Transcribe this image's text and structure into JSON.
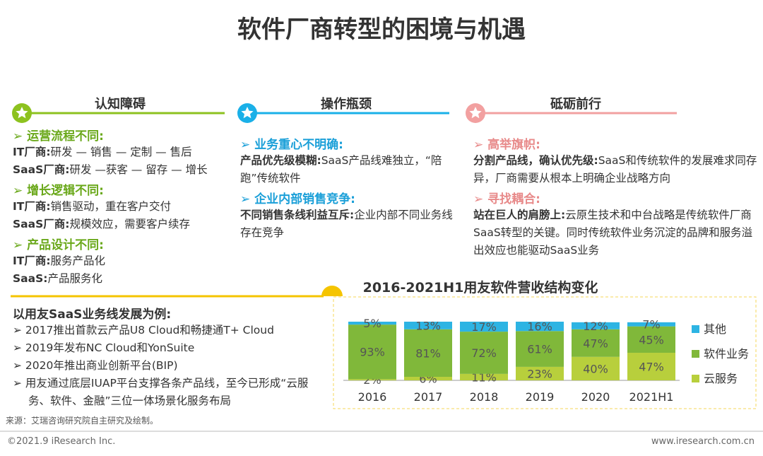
{
  "title": "软件厂商转型的困境与机遇",
  "columns": [
    {
      "heading": "认知障碍",
      "sections": [
        {
          "heading": "运营流程不同:",
          "lines": [
            {
              "label": "IT厂商:",
              "text": "研发 — 销售 — 定制 — 售后"
            },
            {
              "label": "SaaS厂商:",
              "text": "研发 —获客 — 留存 — 增长"
            }
          ]
        },
        {
          "heading": "增长逻辑不同:",
          "lines": [
            {
              "label": "IT厂商:",
              "text": "销售驱动，重在客户交付"
            },
            {
              "label": "SaaS厂商:",
              "text": "规模效应，需要客户续存"
            }
          ]
        },
        {
          "heading": "产品设计不同:",
          "lines": [
            {
              "label": "IT厂商:",
              "text": "服务产品化"
            },
            {
              "label": "SaaS:",
              "text": "产品服务化"
            }
          ]
        }
      ]
    },
    {
      "heading": "操作瓶颈",
      "sections": [
        {
          "heading": "业务重心不明确:",
          "lines": [
            {
              "label": "产品优先级模糊:",
              "text": "SaaS产品线难独立，“陪跑”传统软件"
            }
          ]
        },
        {
          "heading": "企业内部销售竞争:",
          "lines": [
            {
              "label": "不同销售条线利益互斥:",
              "text": "企业内部不同业务线存在竞争"
            }
          ]
        }
      ]
    },
    {
      "heading": "砥砺前行",
      "sections": [
        {
          "heading": "高举旗帜:",
          "lines": [
            {
              "label": "分割产品线，确认优先级:",
              "text": "SaaS和传统软件的发展难求同存异，厂商需要从根本上明确企业战略方向"
            }
          ]
        },
        {
          "heading": "寻找耦合:",
          "lines": [
            {
              "label": "站在巨人的肩膀上:",
              "text": "云原生技术和中台战略是传统软件厂商SaaS转型的关键。同时传统软件业务沉淀的品牌和服务溢出效应也能驱动SaaS业务"
            }
          ]
        }
      ]
    }
  ],
  "example": {
    "title": "以用友SaaS业务线发展为例:",
    "items": [
      "2017推出首款云产品U8 Cloud和畅捷通T+ Cloud",
      "2019年发布NC Cloud和YonSuite",
      "2020年推出商业创新平台(BIP)",
      "用友通过底层IUAP平台支撑各条产品线，至今已形成“云服务、软件、金融”三位一体场景化服务布局"
    ]
  },
  "chart_data": {
    "type": "stacked-bar",
    "title": "2016-2021H1用友软件营收结构变化",
    "categories": [
      "2016",
      "2017",
      "2018",
      "2019",
      "2020",
      "2021H1"
    ],
    "series": [
      {
        "name": "其他",
        "color": "#2db4e3",
        "values": [
          5,
          13,
          17,
          16,
          12,
          7
        ],
        "value_labels": [
          "5%",
          "13%",
          "17%",
          "16%",
          "12%",
          "7%"
        ]
      },
      {
        "name": "软件业务",
        "color": "#80b83a",
        "values": [
          93,
          81,
          72,
          61,
          47,
          45
        ],
        "value_labels": [
          "93%",
          "81%",
          "72%",
          "61%",
          "47%",
          "45%"
        ]
      },
      {
        "name": "云服务",
        "color": "#b8cf3c",
        "values": [
          2,
          6,
          11,
          23,
          40,
          47
        ],
        "value_labels": [
          "2%",
          "6%",
          "11%",
          "23%",
          "40%",
          "47%"
        ]
      }
    ]
  },
  "source": "来源：艾瑞咨询研究院自主研究及绘制。",
  "footer": {
    "left": "©2021.9 iResearch Inc.",
    "right": "www.iresearch.com.cn"
  }
}
